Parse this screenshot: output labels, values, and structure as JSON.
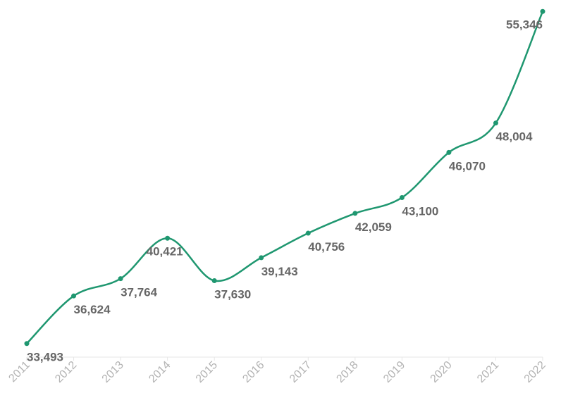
{
  "chart_data": {
    "type": "line",
    "title": "",
    "xlabel": "",
    "ylabel": "",
    "categories": [
      "2011",
      "2012",
      "2013",
      "2014",
      "2015",
      "2016",
      "2017",
      "2018",
      "2019",
      "2020",
      "2021",
      "2022"
    ],
    "values": [
      33493,
      36624,
      37764,
      40421,
      37630,
      39143,
      40756,
      42059,
      43100,
      46070,
      48004,
      55346
    ],
    "data_labels": [
      "33,493",
      "36,624",
      "37,764",
      "40,421",
      "37,630",
      "39,143",
      "40,756",
      "42,059",
      "43,100",
      "46,070",
      "48,004",
      "55,346"
    ],
    "ylim": [
      32600,
      56100
    ],
    "grid": false,
    "legend": "none",
    "colors": {
      "line": "#1f9770",
      "label": "#666666",
      "tick": "#b3b3b3",
      "axis": "#e6e6e6"
    }
  }
}
